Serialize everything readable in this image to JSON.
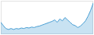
{
  "chart_data": {
    "type": "area",
    "x": [
      0,
      1,
      2,
      3,
      4,
      5,
      6,
      7,
      8,
      9,
      10,
      11,
      12,
      13,
      14,
      15,
      16,
      17,
      18,
      19,
      20,
      21,
      22,
      23,
      24,
      25,
      26,
      27,
      28,
      29,
      30,
      31,
      32,
      33,
      34,
      35,
      36
    ],
    "values": [
      55,
      48,
      42,
      40,
      42,
      40,
      42,
      41,
      43,
      42,
      44,
      43,
      45,
      44,
      46,
      47,
      49,
      51,
      53,
      55,
      57,
      60,
      55,
      62,
      58,
      65,
      60,
      55,
      50,
      48,
      44,
      47,
      52,
      58,
      68,
      80,
      95
    ],
    "color": "#4a9fd4",
    "xlim": [
      0,
      36
    ],
    "ylim": [
      30,
      100
    ],
    "tick_labels": false,
    "grid": false
  }
}
